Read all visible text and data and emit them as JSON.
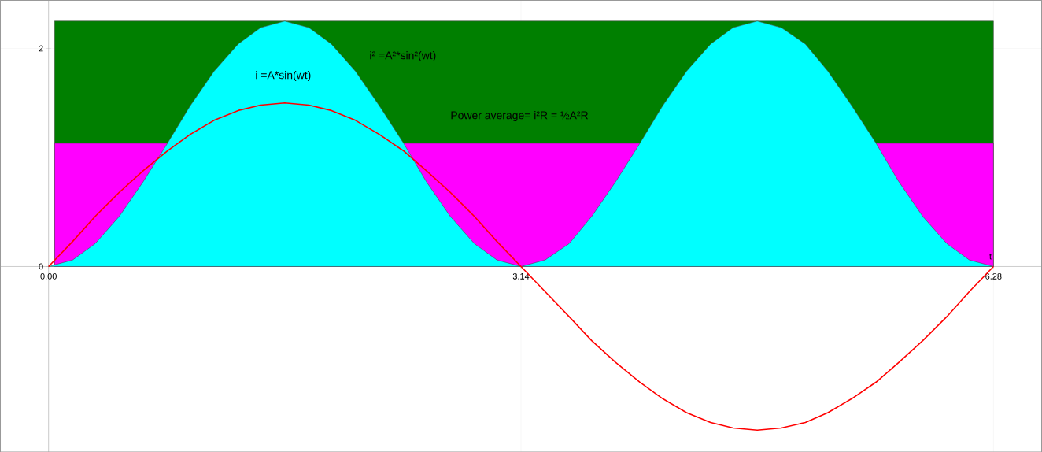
{
  "chart_data": {
    "type": "area",
    "xlabel": "t",
    "xlim": [
      -0.32,
      6.6
    ],
    "ylim": [
      -1.7,
      2.44
    ],
    "xticks": [
      {
        "value": 0,
        "label": "0.00"
      },
      {
        "value": 3.14,
        "label": "3.14"
      },
      {
        "value": 6.28,
        "label": "6.28"
      }
    ],
    "yticks": [
      0,
      2
    ],
    "grid": true,
    "series": [
      {
        "color": "#007f00",
        "x": [
          0.04,
          6.28
        ],
        "values": [
          2.25,
          2.25
        ]
      },
      {
        "color": "#ff00ff",
        "x": [
          0.04,
          6.28
        ],
        "values": [
          1.13,
          1.13
        ]
      },
      {
        "color": "#00ffff",
        "x": [
          0,
          0.16,
          0.31,
          0.47,
          0.63,
          0.79,
          0.94,
          1.1,
          1.26,
          1.41,
          1.57,
          1.73,
          1.88,
          2.04,
          2.2,
          2.36,
          2.51,
          2.67,
          2.83,
          2.98,
          3.14,
          3.3,
          3.46,
          3.61,
          3.77,
          3.93,
          4.08,
          4.24,
          4.4,
          4.55,
          4.71,
          4.87,
          5.03,
          5.18,
          5.34,
          5.5,
          5.65,
          5.81,
          5.97,
          6.12,
          6.28
        ],
        "values": [
          0,
          0.06,
          0.21,
          0.46,
          0.78,
          1.13,
          1.47,
          1.79,
          2.04,
          2.19,
          2.25,
          2.19,
          2.04,
          1.79,
          1.47,
          1.13,
          0.78,
          0.46,
          0.21,
          0.06,
          0,
          0.06,
          0.21,
          0.46,
          0.78,
          1.13,
          1.47,
          1.79,
          2.04,
          2.19,
          2.25,
          2.19,
          2.04,
          1.79,
          1.47,
          1.13,
          0.78,
          0.46,
          0.21,
          0.06,
          0
        ]
      },
      {
        "type": "line",
        "color": "#ff0000",
        "x": [
          0,
          0.16,
          0.31,
          0.47,
          0.63,
          0.79,
          0.94,
          1.1,
          1.26,
          1.41,
          1.57,
          1.73,
          1.88,
          2.04,
          2.2,
          2.36,
          2.51,
          2.67,
          2.83,
          2.98,
          3.14,
          3.3,
          3.46,
          3.61,
          3.77,
          3.93,
          4.08,
          4.24,
          4.4,
          4.55,
          4.71,
          4.87,
          5.03,
          5.18,
          5.34,
          5.5,
          5.65,
          5.81,
          5.97,
          6.12,
          6.28
        ],
        "values": [
          0,
          0.23,
          0.46,
          0.68,
          0.88,
          1.06,
          1.21,
          1.34,
          1.43,
          1.48,
          1.5,
          1.48,
          1.43,
          1.34,
          1.21,
          1.06,
          0.88,
          0.68,
          0.46,
          0.23,
          0,
          -0.23,
          -0.46,
          -0.68,
          -0.88,
          -1.06,
          -1.21,
          -1.34,
          -1.43,
          -1.48,
          -1.5,
          -1.48,
          -1.43,
          -1.34,
          -1.21,
          -1.06,
          -0.88,
          -0.68,
          -0.46,
          -0.23,
          0
        ]
      }
    ],
    "annotations": [
      "i =A*sin(wt)",
      "i² =A²*sin²(wt)",
      "Power average= i²R = ½A²R"
    ]
  }
}
